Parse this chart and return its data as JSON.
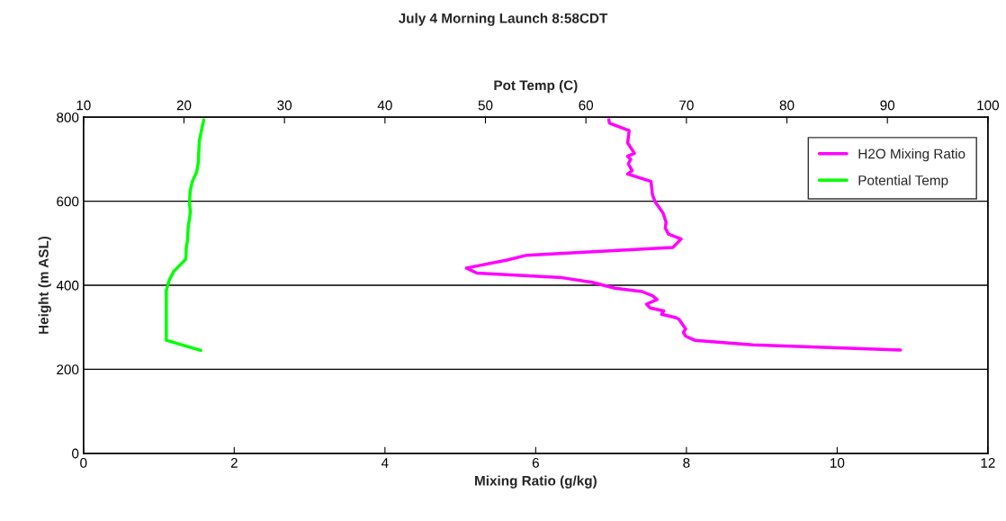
{
  "chart_data": {
    "type": "line",
    "title": "July 4 Morning Launch 8:58CDT",
    "xlabel": "Mixing Ratio (g/kg)",
    "x2label": "Pot Temp (C)",
    "ylabel": "Height (m ASL)",
    "xlim": [
      0,
      12
    ],
    "xticks": [
      0,
      2,
      4,
      6,
      8,
      10,
      12
    ],
    "x2lim": [
      10,
      100
    ],
    "x2ticks": [
      10,
      20,
      30,
      40,
      50,
      60,
      70,
      80,
      90,
      100
    ],
    "ylim": [
      0,
      800
    ],
    "yticks": [
      0,
      200,
      400,
      600,
      800
    ],
    "grid": "y",
    "legend": "top right",
    "marker": "none",
    "line_style": "solid",
    "series": [
      {
        "name": "H2O Mixing Ratio",
        "color": "#ff00ff",
        "x": [
          6.97,
          6.98,
          7.24,
          7.22,
          7.31,
          7.22,
          7.26,
          7.23,
          7.28,
          7.22,
          7.53,
          7.55,
          7.59,
          7.69,
          7.73,
          7.72,
          7.76,
          7.93,
          7.82,
          5.87,
          5.62,
          5.08,
          5.22,
          6.35,
          6.75,
          7.05,
          7.41,
          7.55,
          7.61,
          7.47,
          7.52,
          7.7,
          7.67,
          7.86,
          7.9,
          7.99,
          7.96,
          7.99,
          8.11,
          8.88,
          10.84
        ],
        "values": [
          794,
          786,
          768,
          739,
          714,
          707,
          700,
          689,
          673,
          665,
          647,
          615,
          597,
          572,
          550,
          536,
          522,
          510,
          490,
          471,
          460,
          441,
          429,
          418,
          407,
          393,
          385,
          375,
          366,
          355,
          346,
          339,
          331,
          323,
          319,
          296,
          288,
          279,
          269,
          258,
          246
        ]
      },
      {
        "name": "Potential Temp",
        "color": "#00ff00",
        "axis": "x2",
        "x": [
          21.97,
          21.82,
          21.52,
          21.43,
          21.28,
          20.83,
          20.63,
          20.54,
          20.65,
          20.41,
          20.36,
          20.23,
          20.18,
          18.98,
          18.53,
          18.24,
          18.24,
          21.67
        ],
        "values": [
          794,
          778,
          742,
          693,
          671,
          647,
          626,
          594,
          576,
          536,
          508,
          490,
          462,
          433,
          412,
          387,
          269,
          245
        ]
      }
    ]
  }
}
